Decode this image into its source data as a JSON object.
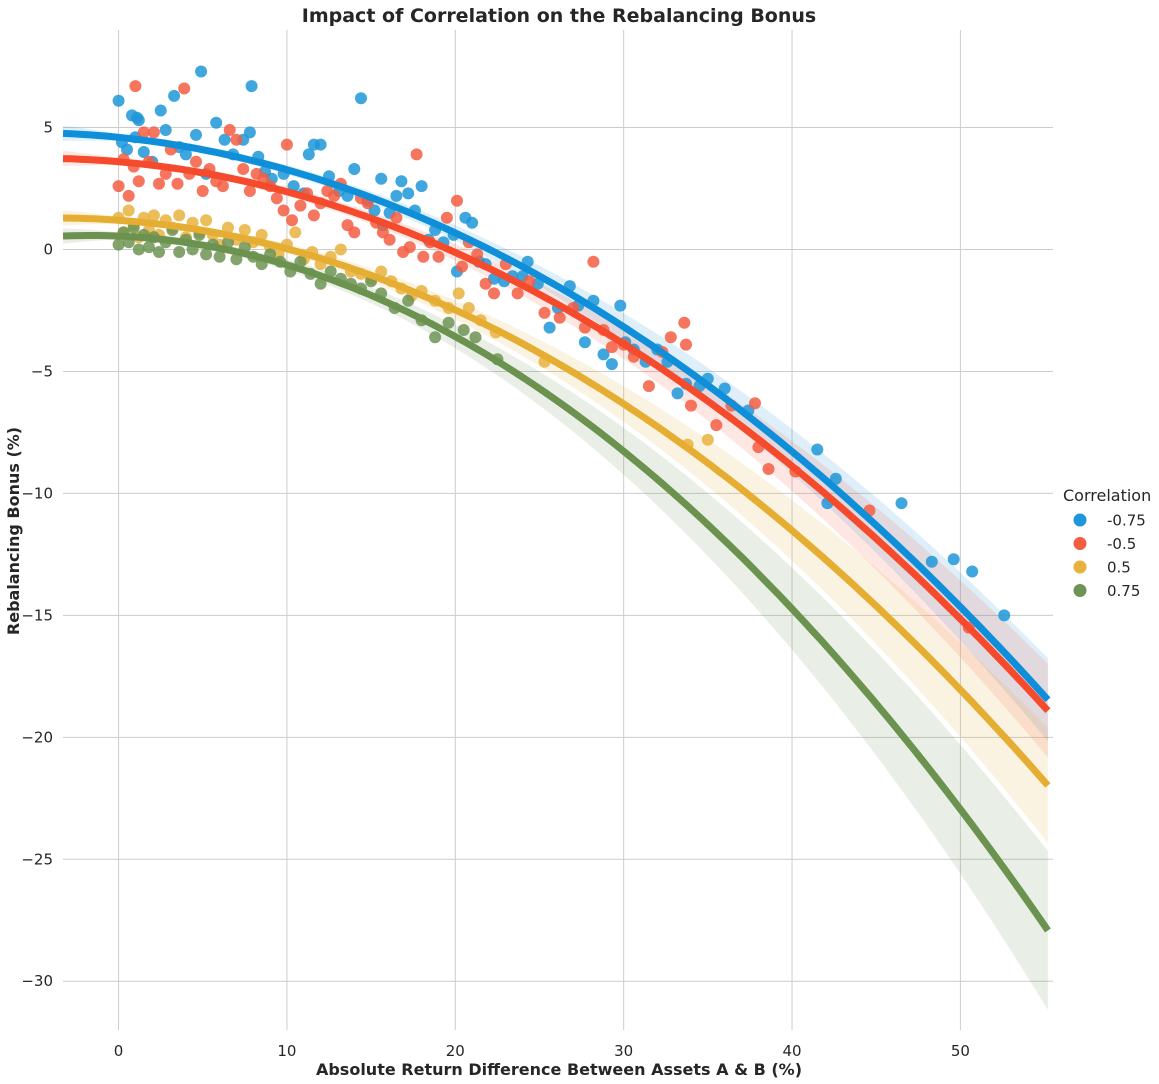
{
  "chart_data": {
    "type": "scatter",
    "title": "Impact of Correlation on the Rebalancing Bonus",
    "xlabel": "Absolute Return Difference Between Assets A & B (%)",
    "ylabel": "Rebalancing Bonus (%)",
    "xlim": [
      -3.3,
      55.5
    ],
    "ylim": [
      -32,
      9
    ],
    "xticks": [
      0,
      10,
      20,
      30,
      40,
      50
    ],
    "yticks": [
      5,
      0,
      -5,
      -10,
      -15,
      -20,
      -25,
      -30
    ],
    "xtick_labels": [
      "0",
      "10",
      "20",
      "30",
      "40",
      "50"
    ],
    "ytick_labels": [
      "5",
      "0",
      "−5",
      "−10",
      "−15",
      "−20",
      "−25",
      "−30"
    ],
    "grid": true,
    "legend_title": "Correlation",
    "legend_position": "right",
    "fit": "quadratic regression with confidence band",
    "series": [
      {
        "name": "-0.75",
        "color": "#1f96d8",
        "fit_color": "#0f8fd9",
        "fit": {
          "c0": 4.6,
          "c1": -0.07,
          "c2": -0.0063,
          "band": 0.7
        },
        "points": [
          [
            0,
            6.1
          ],
          [
            0.2,
            4.4
          ],
          [
            0.5,
            4.1
          ],
          [
            0.8,
            5.5
          ],
          [
            1.1,
            5.4
          ],
          [
            1.2,
            5.3
          ],
          [
            1.0,
            4.6
          ],
          [
            1.5,
            4.0
          ],
          [
            2.0,
            3.6
          ],
          [
            2.5,
            5.7
          ],
          [
            2.8,
            4.9
          ],
          [
            3.3,
            6.3
          ],
          [
            3.6,
            4.2
          ],
          [
            4.0,
            3.9
          ],
          [
            4.6,
            4.7
          ],
          [
            4.9,
            7.3
          ],
          [
            5.2,
            3.1
          ],
          [
            5.8,
            5.2
          ],
          [
            6.3,
            4.5
          ],
          [
            6.8,
            3.9
          ],
          [
            7.4,
            4.5
          ],
          [
            7.9,
            6.7
          ],
          [
            7.8,
            4.8
          ],
          [
            8.3,
            3.8
          ],
          [
            8.7,
            3.2
          ],
          [
            9.1,
            2.9
          ],
          [
            9.8,
            3.1
          ],
          [
            10.4,
            2.6
          ],
          [
            11.0,
            2.3
          ],
          [
            11.3,
            3.9
          ],
          [
            11.6,
            4.3
          ],
          [
            12.0,
            4.3
          ],
          [
            12.5,
            3.0
          ],
          [
            13.1,
            2.4
          ],
          [
            13.6,
            2.2
          ],
          [
            14.0,
            3.3
          ],
          [
            14.4,
            6.2
          ],
          [
            14.8,
            2.0
          ],
          [
            15.2,
            1.6
          ],
          [
            15.6,
            2.9
          ],
          [
            15.7,
            1.0
          ],
          [
            16.1,
            1.5
          ],
          [
            16.5,
            2.2
          ],
          [
            16.8,
            2.8
          ],
          [
            17.2,
            2.3
          ],
          [
            17.6,
            1.6
          ],
          [
            18.0,
            2.6
          ],
          [
            18.4,
            0.4
          ],
          [
            18.8,
            0.8
          ],
          [
            19.3,
            0.3
          ],
          [
            19.9,
            0.6
          ],
          [
            20.1,
            -0.9
          ],
          [
            20.6,
            1.3
          ],
          [
            21.0,
            1.1
          ],
          [
            21.4,
            -0.5
          ],
          [
            21.8,
            -0.6
          ],
          [
            22.3,
            -1.2
          ],
          [
            22.9,
            -1.3
          ],
          [
            23.4,
            -1.1
          ],
          [
            24.0,
            -1.1
          ],
          [
            24.3,
            -0.5
          ],
          [
            24.9,
            -1.4
          ],
          [
            25.6,
            -3.2
          ],
          [
            26.1,
            -2.4
          ],
          [
            26.8,
            -1.5
          ],
          [
            27.3,
            -2.3
          ],
          [
            27.7,
            -3.8
          ],
          [
            28.2,
            -2.1
          ],
          [
            28.8,
            -4.3
          ],
          [
            29.3,
            -4.7
          ],
          [
            29.8,
            -2.3
          ],
          [
            30.1,
            -3.8
          ],
          [
            30.6,
            -4.1
          ],
          [
            31.3,
            -4.6
          ],
          [
            32.0,
            -4.1
          ],
          [
            32.6,
            -4.6
          ],
          [
            33.2,
            -5.9
          ],
          [
            33.7,
            -5.5
          ],
          [
            34.5,
            -5.6
          ],
          [
            35.0,
            -5.3
          ],
          [
            36.0,
            -5.7
          ],
          [
            37.4,
            -6.6
          ],
          [
            41.5,
            -8.2
          ],
          [
            42.6,
            -9.4
          ],
          [
            42.1,
            -10.4
          ],
          [
            46.5,
            -10.4
          ],
          [
            48.3,
            -12.8
          ],
          [
            49.6,
            -12.7
          ],
          [
            50.7,
            -13.2
          ],
          [
            52.6,
            -15.0
          ]
        ]
      },
      {
        "name": "-0.5",
        "color": "#f55d42",
        "fit_color": "#f54a2c",
        "fit": {
          "c0": 3.6,
          "c1": -0.06,
          "c2": -0.0063,
          "band": 0.8
        },
        "points": [
          [
            0,
            2.6
          ],
          [
            0.3,
            3.7
          ],
          [
            0.6,
            2.2
          ],
          [
            0.9,
            3.4
          ],
          [
            1.0,
            6.7
          ],
          [
            1.2,
            2.8
          ],
          [
            1.5,
            4.8
          ],
          [
            1.8,
            3.6
          ],
          [
            2.1,
            4.8
          ],
          [
            2.4,
            2.7
          ],
          [
            2.8,
            3.1
          ],
          [
            3.1,
            4.1
          ],
          [
            3.5,
            2.7
          ],
          [
            3.9,
            6.6
          ],
          [
            4.2,
            3.1
          ],
          [
            4.6,
            3.6
          ],
          [
            5.0,
            2.4
          ],
          [
            5.4,
            3.3
          ],
          [
            5.8,
            2.8
          ],
          [
            6.2,
            2.6
          ],
          [
            6.6,
            4.9
          ],
          [
            7.0,
            4.5
          ],
          [
            7.4,
            3.3
          ],
          [
            7.8,
            2.4
          ],
          [
            8.2,
            3.1
          ],
          [
            8.6,
            2.9
          ],
          [
            9.0,
            2.6
          ],
          [
            9.4,
            2.1
          ],
          [
            9.8,
            1.6
          ],
          [
            10.0,
            4.3
          ],
          [
            10.3,
            1.2
          ],
          [
            10.8,
            1.8
          ],
          [
            11.2,
            2.3
          ],
          [
            11.6,
            1.4
          ],
          [
            12.0,
            1.9
          ],
          [
            12.4,
            2.4
          ],
          [
            12.8,
            2.2
          ],
          [
            13.2,
            2.7
          ],
          [
            13.6,
            1.0
          ],
          [
            14.0,
            0.7
          ],
          [
            14.4,
            2.1
          ],
          [
            14.8,
            1.9
          ],
          [
            15.3,
            1.1
          ],
          [
            15.7,
            0.7
          ],
          [
            16.1,
            0.4
          ],
          [
            16.5,
            1.3
          ],
          [
            16.9,
            -0.1
          ],
          [
            17.3,
            0.1
          ],
          [
            17.7,
            3.9
          ],
          [
            18.1,
            -0.3
          ],
          [
            18.5,
            0.3
          ],
          [
            19.0,
            -0.3
          ],
          [
            19.5,
            1.3
          ],
          [
            20.1,
            2.0
          ],
          [
            20.4,
            -0.7
          ],
          [
            20.8,
            0.3
          ],
          [
            21.3,
            -0.2
          ],
          [
            21.8,
            -1.4
          ],
          [
            22.3,
            -1.8
          ],
          [
            23.0,
            -0.6
          ],
          [
            23.7,
            -1.8
          ],
          [
            24.4,
            -1.3
          ],
          [
            25.3,
            -2.6
          ],
          [
            26.2,
            -2.8
          ],
          [
            27.0,
            -2.4
          ],
          [
            27.7,
            -3.2
          ],
          [
            28.2,
            -0.5
          ],
          [
            28.8,
            -3.3
          ],
          [
            29.3,
            -4.0
          ],
          [
            30.0,
            -3.9
          ],
          [
            30.6,
            -4.4
          ],
          [
            31.5,
            -5.6
          ],
          [
            32.3,
            -4.2
          ],
          [
            32.8,
            -3.6
          ],
          [
            33.6,
            -3.0
          ],
          [
            33.7,
            -3.9
          ],
          [
            34.0,
            -6.4
          ],
          [
            35.5,
            -7.2
          ],
          [
            36.4,
            -6.4
          ],
          [
            37.8,
            -6.3
          ],
          [
            38.0,
            -8.1
          ],
          [
            38.6,
            -9.0
          ],
          [
            40.2,
            -9.1
          ],
          [
            44.6,
            -10.7
          ],
          [
            50.5,
            -15.5
          ]
        ]
      },
      {
        "name": "0.5",
        "color": "#e7b13e",
        "fit_color": "#e6ad33",
        "fit": {
          "c0": 1.2,
          "c1": -0.05,
          "c2": -0.0067,
          "band": 1.0
        },
        "points": [
          [
            0,
            1.3
          ],
          [
            0.3,
            0.7
          ],
          [
            0.6,
            1.6
          ],
          [
            0.9,
            1.0
          ],
          [
            1.2,
            0.5
          ],
          [
            1.5,
            1.3
          ],
          [
            1.8,
            0.8
          ],
          [
            2.1,
            1.4
          ],
          [
            2.4,
            0.6
          ],
          [
            2.8,
            1.2
          ],
          [
            3.2,
            0.9
          ],
          [
            3.6,
            1.4
          ],
          [
            4.0,
            0.5
          ],
          [
            4.4,
            1.1
          ],
          [
            4.8,
            0.7
          ],
          [
            5.2,
            1.2
          ],
          [
            5.6,
            0.6
          ],
          [
            6.0,
            0.2
          ],
          [
            6.5,
            0.9
          ],
          [
            7.0,
            0.4
          ],
          [
            7.5,
            0.8
          ],
          [
            8.0,
            0.3
          ],
          [
            8.5,
            0.6
          ],
          [
            9.0,
            0.1
          ],
          [
            9.5,
            -0.2
          ],
          [
            10.0,
            0.2
          ],
          [
            10.5,
            0.7
          ],
          [
            11.0,
            -0.4
          ],
          [
            11.5,
            -0.1
          ],
          [
            12.0,
            -0.6
          ],
          [
            12.6,
            -0.3
          ],
          [
            13.2,
            0.0
          ],
          [
            13.8,
            -0.9
          ],
          [
            14.4,
            -1.0
          ],
          [
            15.0,
            -1.2
          ],
          [
            15.6,
            -0.9
          ],
          [
            16.2,
            -1.3
          ],
          [
            16.8,
            -1.6
          ],
          [
            17.4,
            -1.9
          ],
          [
            18.0,
            -1.7
          ],
          [
            18.8,
            -2.1
          ],
          [
            19.6,
            -2.4
          ],
          [
            20.2,
            -1.8
          ],
          [
            20.8,
            -2.4
          ],
          [
            21.5,
            -2.9
          ],
          [
            22.4,
            -3.4
          ],
          [
            25.3,
            -4.6
          ],
          [
            33.8,
            -8.0
          ],
          [
            35.0,
            -7.8
          ]
        ]
      },
      {
        "name": "0.75",
        "color": "#6d9454",
        "fit_color": "#6b924e",
        "fit": {
          "c0": 0.55,
          "c1": -0.03,
          "c2": -0.0088,
          "band": 1.4
        },
        "points": [
          [
            0,
            0.2
          ],
          [
            0.3,
            0.7
          ],
          [
            0.6,
            0.3
          ],
          [
            0.9,
            0.9
          ],
          [
            1.2,
            0.0
          ],
          [
            1.5,
            0.6
          ],
          [
            1.8,
            0.1
          ],
          [
            2.1,
            0.5
          ],
          [
            2.4,
            -0.1
          ],
          [
            2.8,
            0.3
          ],
          [
            3.2,
            0.8
          ],
          [
            3.6,
            -0.1
          ],
          [
            4.0,
            0.4
          ],
          [
            4.4,
            0.0
          ],
          [
            4.8,
            0.6
          ],
          [
            5.2,
            -0.2
          ],
          [
            5.6,
            0.2
          ],
          [
            6.0,
            -0.3
          ],
          [
            6.5,
            0.3
          ],
          [
            7.0,
            -0.4
          ],
          [
            7.5,
            0.1
          ],
          [
            8.0,
            -0.3
          ],
          [
            8.5,
            -0.6
          ],
          [
            9.0,
            -0.2
          ],
          [
            9.6,
            -0.5
          ],
          [
            10.2,
            -0.9
          ],
          [
            10.8,
            -0.5
          ],
          [
            11.4,
            -1.0
          ],
          [
            12.0,
            -1.4
          ],
          [
            12.6,
            -0.9
          ],
          [
            13.2,
            -1.2
          ],
          [
            13.8,
            -1.4
          ],
          [
            14.4,
            -1.6
          ],
          [
            15.0,
            -1.3
          ],
          [
            15.6,
            -1.8
          ],
          [
            16.4,
            -2.4
          ],
          [
            17.2,
            -2.1
          ],
          [
            18.0,
            -2.9
          ],
          [
            18.8,
            -3.6
          ],
          [
            19.6,
            -3.0
          ],
          [
            20.5,
            -3.3
          ],
          [
            21.2,
            -3.6
          ],
          [
            22.5,
            -4.5
          ]
        ]
      }
    ]
  }
}
